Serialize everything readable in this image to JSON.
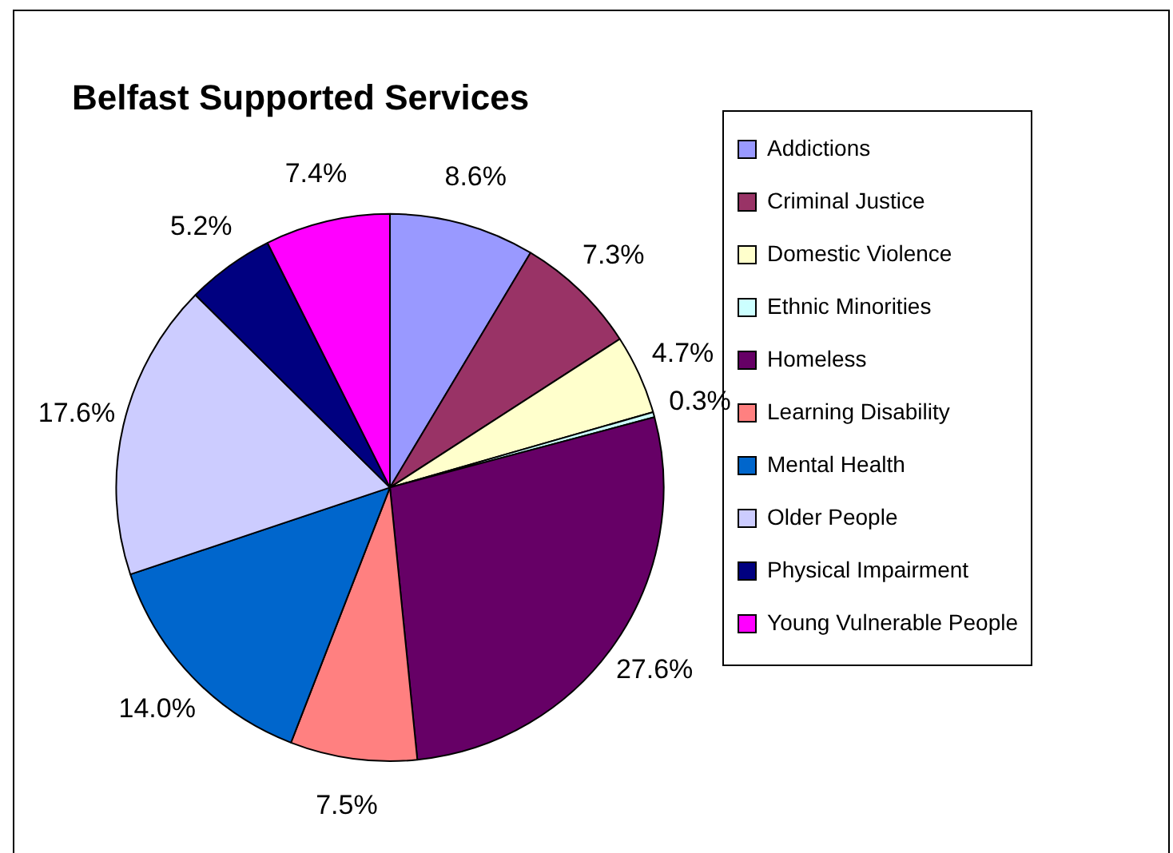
{
  "chart_data": {
    "type": "pie",
    "title": "Belfast Supported Services",
    "categories": [
      "Addictions",
      "Criminal Justice",
      "Domestic Violence",
      "Ethnic Minorities",
      "Homeless",
      "Learning Disability",
      "Mental Health",
      "Older People",
      "Physical Impairment",
      "Young Vulnerable People"
    ],
    "values": [
      8.6,
      7.3,
      4.7,
      0.3,
      27.6,
      7.5,
      14.0,
      17.6,
      5.2,
      7.4
    ],
    "value_labels": [
      "8.6%",
      "7.3%",
      "4.7%",
      "0.3%",
      "27.6%",
      "7.5%",
      "14.0%",
      "17.6%",
      "5.2%",
      "7.4%"
    ],
    "colors": [
      "#9999ff",
      "#993366",
      "#ffffcc",
      "#ccffff",
      "#660066",
      "#ff8080",
      "#0066cc",
      "#ccccff",
      "#000080",
      "#ff00ff"
    ],
    "legend": "right"
  }
}
